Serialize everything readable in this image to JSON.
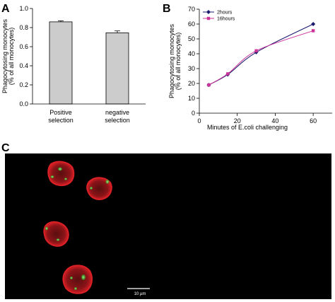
{
  "panel_labels": {
    "a": "A",
    "b": "B",
    "c": "C"
  },
  "chart_data": [
    {
      "type": "bar",
      "categories": [
        [
          "Positive",
          "selection"
        ],
        [
          "negative",
          "selection"
        ]
      ],
      "values": [
        0.86,
        0.745
      ],
      "errors": [
        0.01,
        0.02
      ],
      "ylabel": [
        "Phagocytosing monocytes",
        "(% of all monocytes)"
      ],
      "ylim": [
        0,
        1
      ],
      "yticks": [
        "0.0",
        "0.2",
        "0.4",
        "0.6",
        "0.8",
        "1.0"
      ],
      "bar_color": "#cccccc"
    },
    {
      "type": "line",
      "x": [
        5,
        15,
        30,
        60
      ],
      "series": [
        {
          "name": "2hours",
          "values": [
            19,
            26,
            41,
            60
          ],
          "color": "#1a1a6e",
          "marker": "diamond"
        },
        {
          "name": "16hours",
          "values": [
            19,
            26.5,
            42,
            55.5
          ],
          "color": "#cc3399",
          "marker": "square"
        }
      ],
      "xlabel": "Minutes of E.coli challenging",
      "ylabel": [
        "Phagocytosing monocytes",
        "(% of all monocytes)"
      ],
      "xlim": [
        0,
        70
      ],
      "ylim": [
        0,
        70
      ],
      "xticks": [
        "0",
        "20",
        "40",
        "60"
      ],
      "yticks": [
        "0",
        "10",
        "20",
        "30",
        "40",
        "50",
        "60",
        "70"
      ],
      "legend_position": "top-left"
    }
  ],
  "micrograph": {
    "background_color": "#000000",
    "cell_color": "#c0141a",
    "granule_color": "#3ee03e",
    "scale_label": "10 µm"
  }
}
